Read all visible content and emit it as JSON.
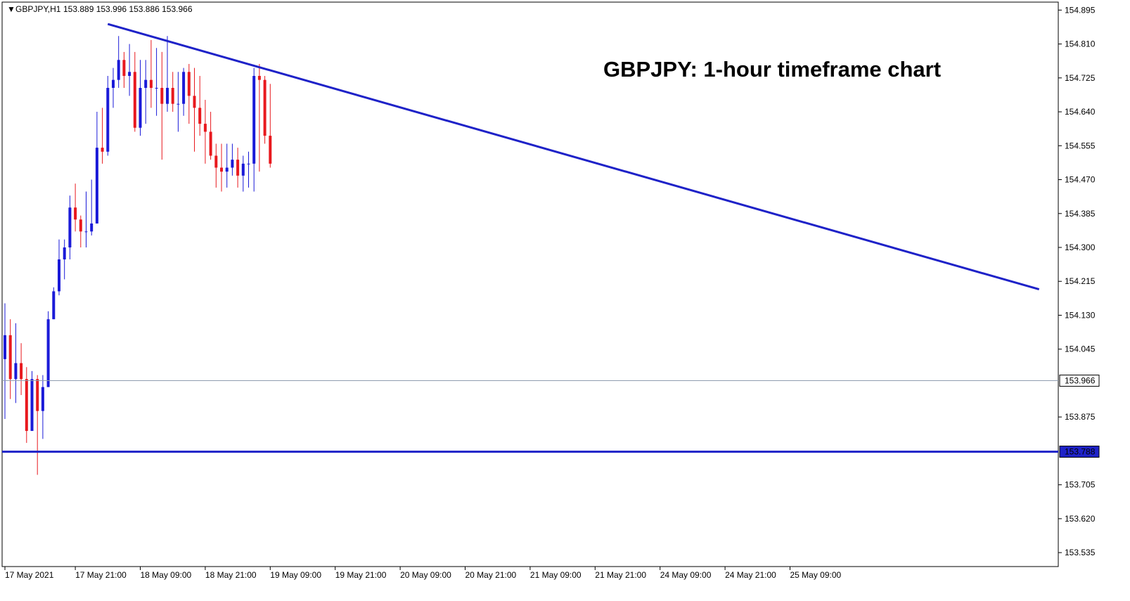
{
  "chart_data": {
    "type": "candlestick",
    "symbol_header": "GBPJPY,H1",
    "ohlc_header": "153.889 153.996 153.886 153.966",
    "title": "GBPJPY: 1-hour timeframe chart",
    "ylim": [
      153.5,
      154.915
    ],
    "y_ticks": [
      "154.895",
      "154.810",
      "154.725",
      "154.640",
      "154.555",
      "154.470",
      "154.385",
      "154.300",
      "154.215",
      "154.130",
      "154.045",
      "153.875",
      "153.705",
      "153.620",
      "153.535"
    ],
    "x_ticks": [
      {
        "label": "17 May 2021",
        "index": 0
      },
      {
        "label": "17 May 21:00",
        "index": 13
      },
      {
        "label": "18 May 09:00",
        "index": 25
      },
      {
        "label": "18 May 21:00",
        "index": 37
      },
      {
        "label": "19 May 09:00",
        "index": 49
      },
      {
        "label": "19 May 21:00",
        "index": 61
      },
      {
        "label": "20 May 09:00",
        "index": 73
      },
      {
        "label": "20 May 21:00",
        "index": 85
      },
      {
        "label": "21 May 09:00",
        "index": 97
      },
      {
        "label": "21 May 21:00",
        "index": 109
      },
      {
        "label": "24 May 09:00",
        "index": 121
      },
      {
        "label": "24 May 21:00",
        "index": 133
      },
      {
        "label": "25 May 09:00",
        "index": 145
      }
    ],
    "current_price": {
      "value": 153.966,
      "label": "153.966"
    },
    "support_line": {
      "value": 153.788,
      "label": "153.788"
    },
    "trendline": {
      "start_index": 19,
      "start_value": 154.86,
      "end_index": 191,
      "end_value": 154.195
    },
    "colors": {
      "up": "#1a1ad8",
      "down": "#e8191e",
      "trend": "#1e22c8",
      "grid": "#8f9db0",
      "axis": "#000000"
    },
    "candles": [
      [
        154.02,
        154.16,
        153.87,
        154.08
      ],
      [
        154.08,
        154.12,
        153.92,
        153.97
      ],
      [
        153.97,
        154.11,
        153.91,
        154.01
      ],
      [
        154.01,
        154.06,
        153.93,
        153.97
      ],
      [
        153.97,
        154.0,
        153.81,
        153.84
      ],
      [
        153.84,
        153.99,
        153.84,
        153.97
      ],
      [
        153.97,
        153.98,
        153.73,
        153.89
      ],
      [
        153.89,
        153.98,
        153.82,
        153.95
      ],
      [
        153.95,
        154.14,
        153.95,
        154.12
      ],
      [
        154.12,
        154.2,
        154.12,
        154.19
      ],
      [
        154.19,
        154.32,
        154.18,
        154.27
      ],
      [
        154.27,
        154.32,
        154.22,
        154.3
      ],
      [
        154.3,
        154.43,
        154.27,
        154.4
      ],
      [
        154.4,
        154.46,
        154.34,
        154.37
      ],
      [
        154.37,
        154.38,
        154.3,
        154.34
      ],
      [
        154.34,
        154.44,
        154.3,
        154.34
      ],
      [
        154.34,
        154.47,
        154.33,
        154.36
      ],
      [
        154.36,
        154.64,
        154.36,
        154.55
      ],
      [
        154.55,
        154.65,
        154.51,
        154.54
      ],
      [
        154.54,
        154.73,
        154.53,
        154.7
      ],
      [
        154.7,
        154.75,
        154.65,
        154.72
      ],
      [
        154.72,
        154.83,
        154.7,
        154.77
      ],
      [
        154.77,
        154.79,
        154.7,
        154.73
      ],
      [
        154.73,
        154.81,
        154.68,
        154.74
      ],
      [
        154.74,
        154.79,
        154.59,
        154.6
      ],
      [
        154.6,
        154.77,
        154.58,
        154.7
      ],
      [
        154.7,
        154.77,
        154.61,
        154.72
      ],
      [
        154.72,
        154.82,
        154.65,
        154.7
      ],
      [
        154.7,
        154.8,
        154.63,
        154.7
      ],
      [
        154.7,
        154.79,
        154.52,
        154.66
      ],
      [
        154.66,
        154.83,
        154.64,
        154.7
      ],
      [
        154.7,
        154.74,
        154.64,
        154.66
      ],
      [
        154.66,
        154.74,
        154.59,
        154.66
      ],
      [
        154.66,
        154.75,
        154.63,
        154.74
      ],
      [
        154.74,
        154.76,
        154.61,
        154.68
      ],
      [
        154.68,
        154.75,
        154.54,
        154.65
      ],
      [
        154.65,
        154.73,
        154.58,
        154.61
      ],
      [
        154.61,
        154.67,
        154.51,
        154.59
      ],
      [
        154.59,
        154.64,
        154.52,
        154.53
      ],
      [
        154.53,
        154.56,
        154.45,
        154.5
      ],
      [
        154.5,
        154.56,
        154.44,
        154.49
      ],
      [
        154.49,
        154.56,
        154.45,
        154.5
      ],
      [
        154.5,
        154.56,
        154.48,
        154.52
      ],
      [
        154.52,
        154.55,
        154.45,
        154.48
      ],
      [
        154.48,
        154.53,
        154.44,
        154.51
      ],
      [
        154.51,
        154.54,
        154.45,
        154.51
      ],
      [
        154.51,
        154.75,
        154.44,
        154.73
      ],
      [
        154.73,
        154.76,
        154.49,
        154.72
      ],
      [
        154.72,
        154.73,
        154.56,
        154.58
      ],
      [
        154.58,
        154.71,
        154.5,
        154.51
      ]
    ]
  }
}
